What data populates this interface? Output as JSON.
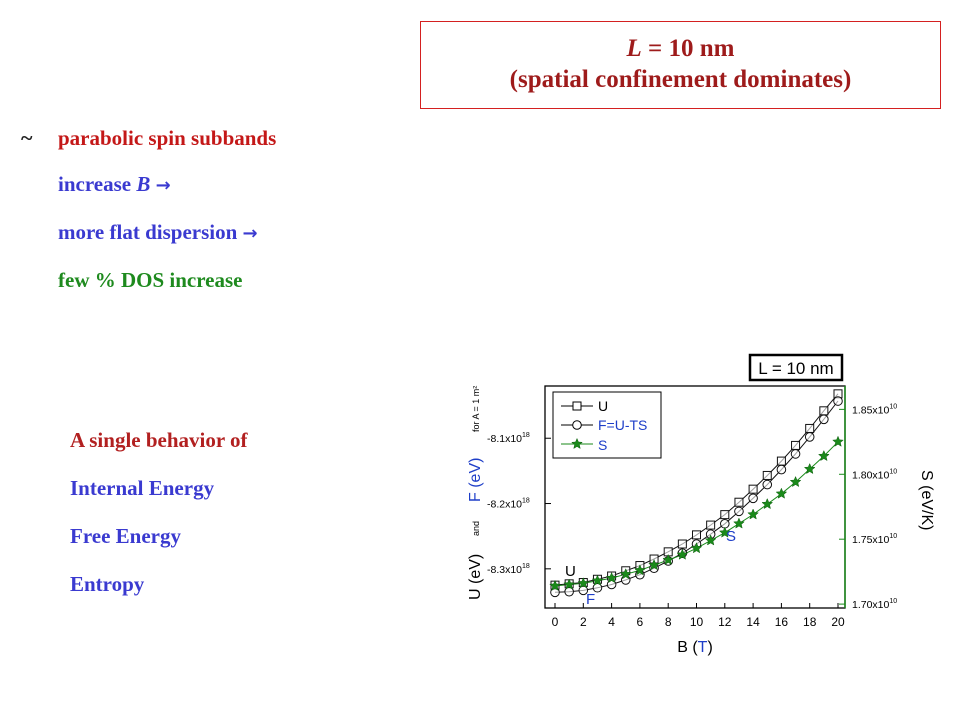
{
  "title_box": {
    "line1_var": "L",
    "line1_rest": " = 10 nm",
    "line2": "(spatial confinement dominates)"
  },
  "bullets": {
    "tilde": "~",
    "b1": "parabolic spin subbands",
    "b2_pre": "increase ",
    "b2_var": "B",
    "b2_arrow": "→",
    "b3": "more flat dispersion",
    "b3_arrow": "→",
    "b4": "few % DOS increase"
  },
  "behavior": {
    "l1": "A single behavior of",
    "l2": "Internal Energy",
    "l3": "Free Energy",
    "l4": "Entropy"
  },
  "chart_data": {
    "type": "scatter",
    "title": "L = 10 nm",
    "xlabel_pre": "B (",
    "xlabel_unit": "T",
    "xlabel_post": ")",
    "ylabel_left": {
      "u": "U (eV)",
      "and": "and",
      "f": "F (eV)",
      "per": "for A = 1 m²"
    },
    "ylabel_right": "S (eV/K)",
    "xlim": [
      0,
      20
    ],
    "x_ticks": [
      "0",
      "2",
      "4",
      "6",
      "8",
      "10",
      "12",
      "14",
      "16",
      "18",
      "20"
    ],
    "ylim_left": [
      -8.36e+18,
      -8.02e+18
    ],
    "left_ticks": [
      {
        "value": -8.1e+18,
        "mant": "-8.1x10",
        "exp": "18"
      },
      {
        "value": -8.2e+18,
        "mant": "-8.2x10",
        "exp": "18"
      },
      {
        "value": -8.3e+18,
        "mant": "-8.3x10",
        "exp": "18"
      }
    ],
    "ylim_right": [
      16970000000.0,
      18680000000.0
    ],
    "right_ticks": [
      {
        "value": 18500000000.0,
        "mant": "1.85x10",
        "exp": "10"
      },
      {
        "value": 18000000000.0,
        "mant": "1.80x10",
        "exp": "10"
      },
      {
        "value": 17500000000.0,
        "mant": "1.75x10",
        "exp": "10"
      },
      {
        "value": 17000000000.0,
        "mant": "1.70x10",
        "exp": "10"
      }
    ],
    "annotations": {
      "u": "U",
      "f": "F",
      "s": "S"
    },
    "legend": [
      "U",
      "F=U-TS",
      "S"
    ],
    "x": [
      0,
      1,
      2,
      3,
      4,
      5,
      6,
      7,
      8,
      9,
      10,
      11,
      12,
      13,
      14,
      15,
      16,
      17,
      18,
      19,
      20
    ],
    "series": [
      {
        "name": "U",
        "axis": "left",
        "marker": "square",
        "color": "#111111",
        "values": [
          -8.325e+18,
          -8.323e+18,
          -8.321e+18,
          -8.316e+18,
          -8.311e+18,
          -8.303e+18,
          -8.295e+18,
          -8.285e+18,
          -8.274e+18,
          -8.262e+18,
          -8.248e+18,
          -8.233e+18,
          -8.217e+18,
          -8.198e+18,
          -8.178e+18,
          -8.157e+18,
          -8.135e+18,
          -8.111e+18,
          -8.085e+18,
          -8.058e+18,
          -8.032e+18
        ]
      },
      {
        "name": "F=U-TS",
        "axis": "left",
        "marker": "circle",
        "color": "#111111",
        "values": [
          -8.336e+18,
          -8.335e+18,
          -8.333e+18,
          -8.329e+18,
          -8.324e+18,
          -8.317e+18,
          -8.309e+18,
          -8.299e+18,
          -8.288e+18,
          -8.276e+18,
          -8.262e+18,
          -8.247e+18,
          -8.231e+18,
          -8.212e+18,
          -8.192e+18,
          -8.171e+18,
          -8.148e+18,
          -8.124e+18,
          -8.098e+18,
          -8.071e+18,
          -8.043e+18
        ]
      },
      {
        "name": "S",
        "axis": "right",
        "marker": "star",
        "color": "#1a8a1a",
        "values": [
          17140000000.0,
          17150000000.0,
          17160000000.0,
          17180000000.0,
          17200000000.0,
          17230000000.0,
          17260000000.0,
          17300000000.0,
          17340000000.0,
          17380000000.0,
          17430000000.0,
          17490000000.0,
          17550000000.0,
          17620000000.0,
          17690000000.0,
          17770000000.0,
          17850000000.0,
          17940000000.0,
          18040000000.0,
          18140000000.0,
          18250000000.0
        ]
      }
    ]
  }
}
